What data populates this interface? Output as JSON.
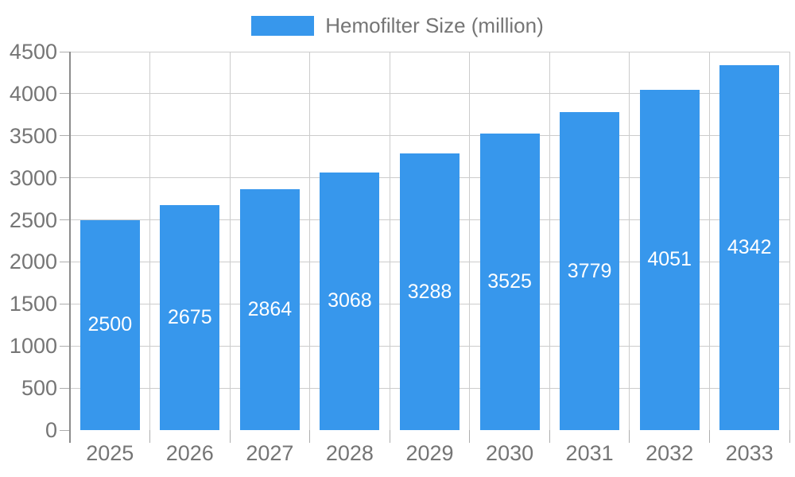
{
  "chart_data": {
    "type": "bar",
    "title": "",
    "categories": [
      "2025",
      "2026",
      "2027",
      "2028",
      "2029",
      "2030",
      "2031",
      "2032",
      "2033"
    ],
    "series": [
      {
        "name": "Hemofilter Size (million)",
        "values": [
          2500,
          2675,
          2864,
          3068,
          3288,
          3525,
          3779,
          4051,
          4342
        ]
      }
    ],
    "bar_value_labels": [
      "2500",
      "2675",
      "2864",
      "3068",
      "3288",
      "3525",
      "3779",
      "4051",
      "4342"
    ],
    "xlabel": "",
    "ylabel": "",
    "ylim": [
      0,
      4500
    ],
    "ytick_step": 500,
    "ytick_labels": [
      "0",
      "500",
      "1000",
      "1500",
      "2000",
      "2500",
      "3000",
      "3500",
      "4000",
      "4500"
    ],
    "grid": true,
    "grid_vertical": true,
    "legend_position": "top-center",
    "colors": {
      "bar": "#3797EC",
      "bar_label_text": "#FFFFFF",
      "axis_text": "#757575",
      "legend_text": "#757575",
      "gridline": "#CCCCCC",
      "axis_line": "#8C8C8C",
      "tick": "#ADADAD",
      "background": "#FFFFFF"
    }
  }
}
